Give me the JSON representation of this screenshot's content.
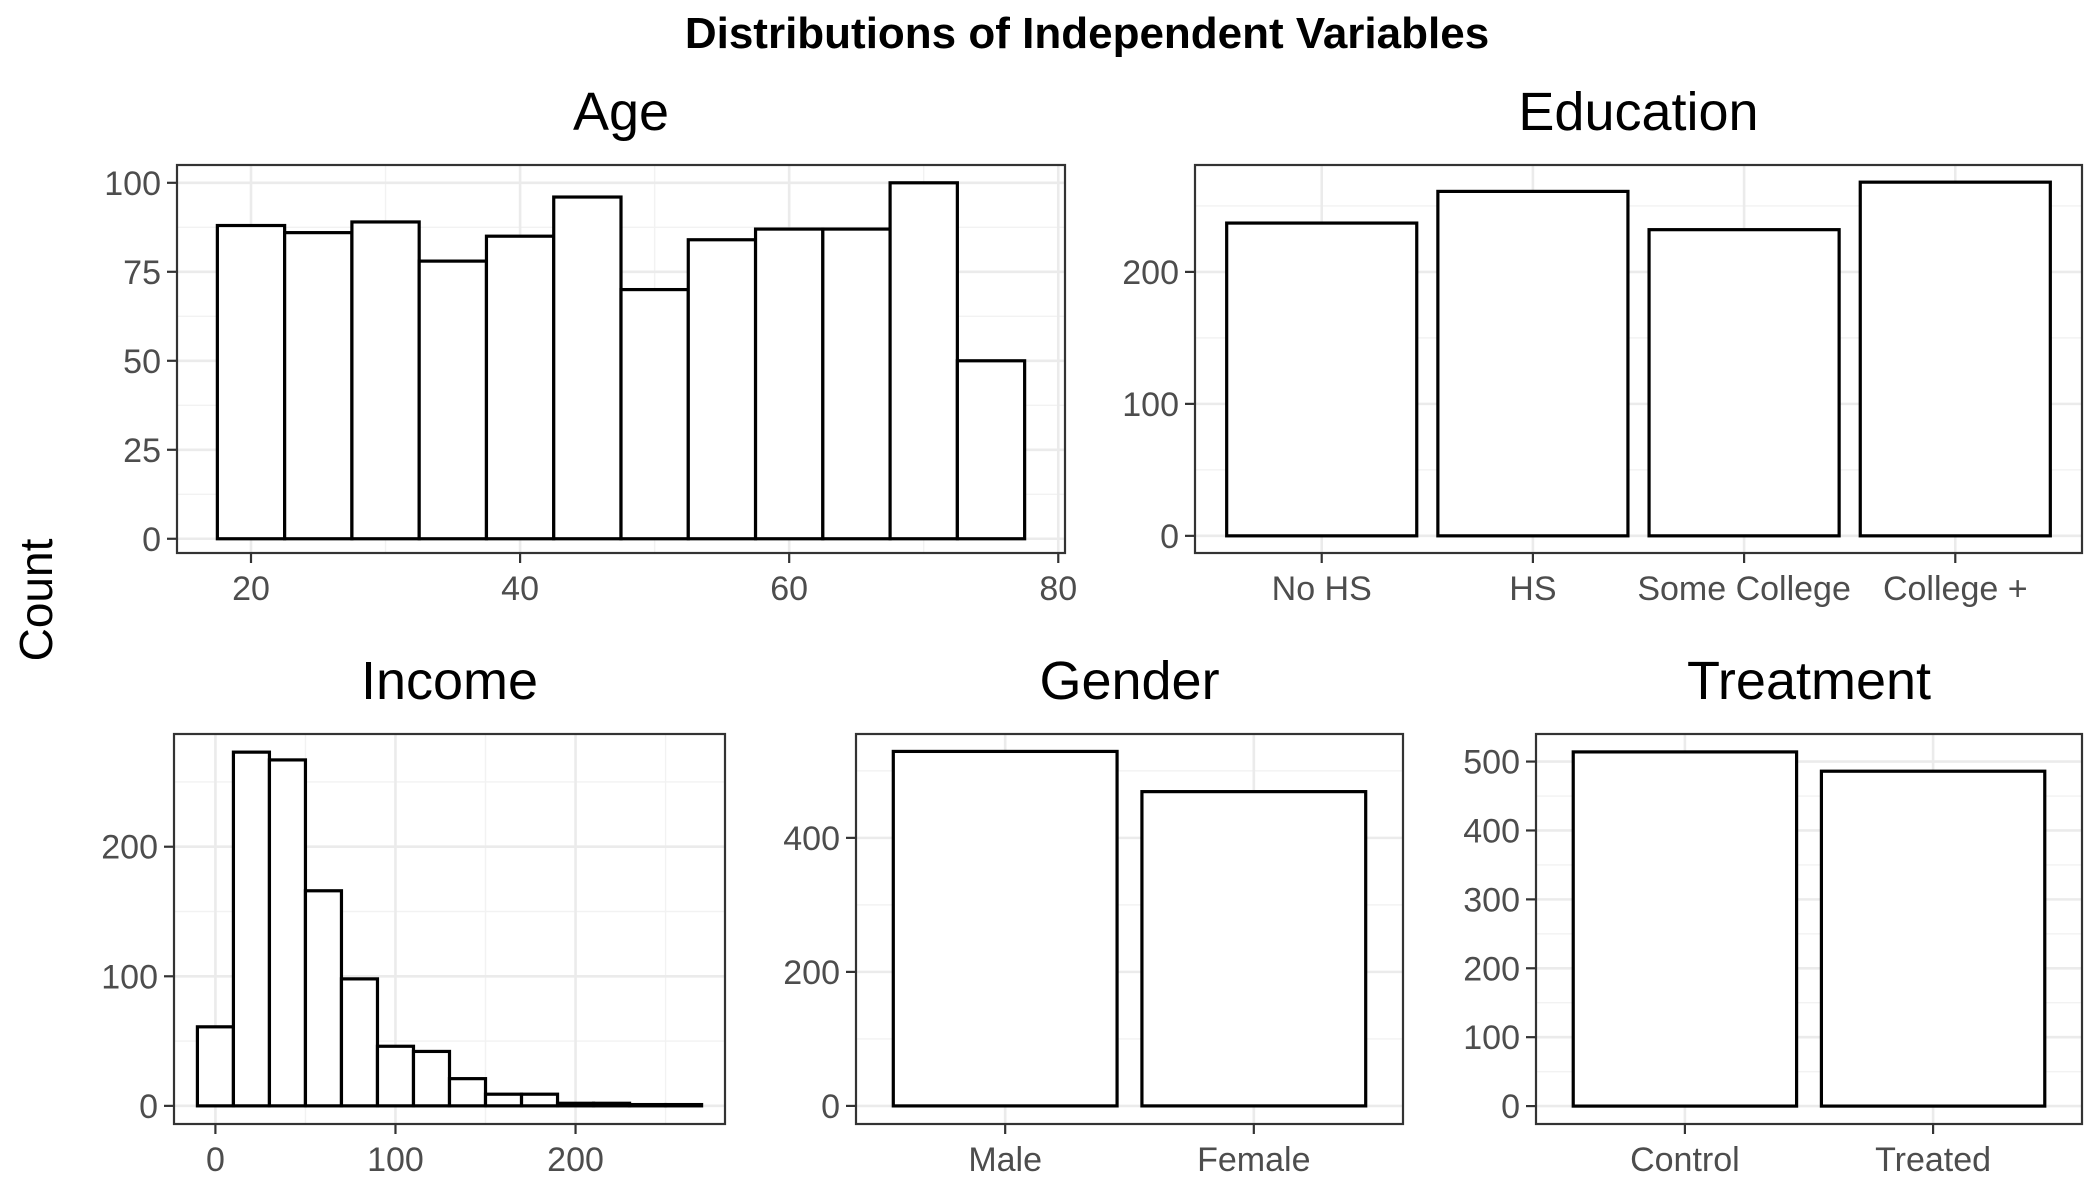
{
  "title": "Distributions of Independent Variables",
  "ylabel": "Count",
  "chart_data": [
    {
      "type": "bar",
      "title": "Age",
      "xlabel": "",
      "ylabel": "Count",
      "bins": [
        {
          "x0": 17.5,
          "x1": 22.5,
          "value": 88
        },
        {
          "x0": 22.5,
          "x1": 27.5,
          "value": 86
        },
        {
          "x0": 27.5,
          "x1": 32.5,
          "value": 89
        },
        {
          "x0": 32.5,
          "x1": 37.5,
          "value": 78
        },
        {
          "x0": 37.5,
          "x1": 42.5,
          "value": 85
        },
        {
          "x0": 42.5,
          "x1": 47.5,
          "value": 96
        },
        {
          "x0": 47.5,
          "x1": 52.5,
          "value": 70
        },
        {
          "x0": 52.5,
          "x1": 57.5,
          "value": 84
        },
        {
          "x0": 57.5,
          "x1": 62.5,
          "value": 87
        },
        {
          "x0": 62.5,
          "x1": 67.5,
          "value": 87
        },
        {
          "x0": 67.5,
          "x1": 72.5,
          "value": 100
        },
        {
          "x0": 72.5,
          "x1": 77.5,
          "value": 50
        }
      ],
      "xlim": [
        14.5,
        80.5
      ],
      "ylim": [
        -4,
        105
      ],
      "xticks": [
        20,
        40,
        60,
        80
      ],
      "yticks": [
        0,
        25,
        50,
        75,
        100
      ],
      "grid": true
    },
    {
      "type": "bar",
      "title": "Education",
      "xlabel": "",
      "ylabel": "Count",
      "categories": [
        "No HS",
        "HS",
        "Some College",
        "College +"
      ],
      "values": [
        237,
        261,
        232,
        268
      ],
      "ylim": [
        -13,
        281
      ],
      "yticks": [
        0,
        100,
        200
      ],
      "grid": true
    },
    {
      "type": "bar",
      "title": "Income",
      "xlabel": "",
      "ylabel": "Count",
      "bins": [
        {
          "x0": -10,
          "x1": 10,
          "value": 61
        },
        {
          "x0": 10,
          "x1": 30,
          "value": 273
        },
        {
          "x0": 30,
          "x1": 50,
          "value": 267
        },
        {
          "x0": 50,
          "x1": 70,
          "value": 166
        },
        {
          "x0": 70,
          "x1": 90,
          "value": 98
        },
        {
          "x0": 90,
          "x1": 110,
          "value": 46
        },
        {
          "x0": 110,
          "x1": 130,
          "value": 42
        },
        {
          "x0": 130,
          "x1": 150,
          "value": 21
        },
        {
          "x0": 150,
          "x1": 170,
          "value": 9
        },
        {
          "x0": 170,
          "x1": 190,
          "value": 9
        },
        {
          "x0": 190,
          "x1": 210,
          "value": 2
        },
        {
          "x0": 210,
          "x1": 230,
          "value": 2
        },
        {
          "x0": 230,
          "x1": 250,
          "value": 1
        },
        {
          "x0": 250,
          "x1": 270,
          "value": 1
        }
      ],
      "xlim": [
        -23,
        283
      ],
      "ylim": [
        -14,
        287
      ],
      "xticks": [
        0,
        100,
        200
      ],
      "yticks": [
        0,
        100,
        200
      ],
      "grid": true
    },
    {
      "type": "bar",
      "title": "Gender",
      "xlabel": "",
      "ylabel": "Count",
      "categories": [
        "Male",
        "Female"
      ],
      "values": [
        529,
        469
      ],
      "ylim": [
        -27,
        555
      ],
      "yticks": [
        0,
        200,
        400
      ],
      "grid": true
    },
    {
      "type": "bar",
      "title": "Treatment",
      "xlabel": "",
      "ylabel": "Count",
      "categories": [
        "Control",
        "Treated"
      ],
      "values": [
        514,
        486
      ],
      "ylim": [
        -26,
        540
      ],
      "yticks": [
        0,
        100,
        200,
        300,
        400,
        500
      ],
      "grid": true
    }
  ]
}
